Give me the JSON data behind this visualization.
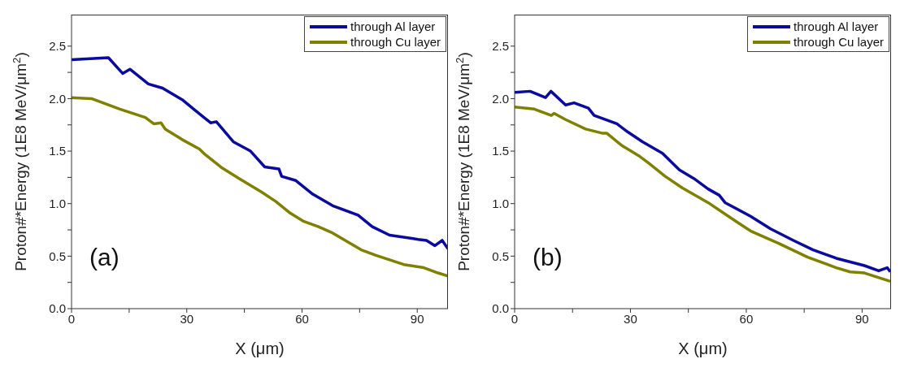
{
  "chart_data": [
    {
      "type": "line",
      "xlabel": "X (μm)",
      "ylabel": "Proton#*Energy (1E8 MeV/μm$^{2}$)",
      "annotations": [
        "(a)"
      ],
      "xlim": [
        0,
        98
      ],
      "ylim": [
        0,
        2.8
      ],
      "xticks": [
        0,
        {
          "value": 15,
          "label": null
        },
        30,
        {
          "value": 45,
          "label": null
        },
        60,
        {
          "value": 75,
          "label": null
        },
        90
      ],
      "yticks": [
        {
          "value": 0,
          "label": "0.0"
        },
        {
          "value": 0.25,
          "label": null
        },
        0.5,
        {
          "value": 0.75,
          "label": null
        },
        {
          "value": 1,
          "label": "1.0"
        },
        {
          "value": 1.25,
          "label": null
        },
        1.5,
        {
          "value": 1.75,
          "label": null
        },
        {
          "value": 2,
          "label": "2.0"
        },
        {
          "value": 2.25,
          "label": null
        },
        2.5
      ],
      "legend": "top right",
      "marker": "none",
      "line_style": "solid",
      "series": [
        {
          "name": "through Al layer",
          "color": "#0a0a9e",
          "x": [
            0,
            9.6,
            13.3,
            15.2,
            20,
            23.7,
            28.8,
            31.8,
            36.2,
            37.7,
            42.1,
            46.6,
            50.3,
            54,
            54.7,
            58.4,
            62.8,
            68,
            74.6,
            78.3,
            82.8,
            90.2,
            92.4,
            94.6,
            96.5,
            98
          ],
          "values": [
            2.37,
            2.39,
            2.24,
            2.28,
            2.14,
            2.1,
            1.99,
            1.9,
            1.77,
            1.78,
            1.59,
            1.5,
            1.35,
            1.33,
            1.26,
            1.22,
            1.09,
            0.98,
            0.89,
            0.78,
            0.7,
            0.66,
            0.65,
            0.6,
            0.65,
            0.57
          ]
        },
        {
          "name": "through Cu layer",
          "color": "#808000",
          "x": [
            0,
            5.2,
            9.6,
            12.6,
            19.2,
            21.4,
            23.3,
            24.4,
            28.8,
            33.3,
            34.7,
            39.2,
            43.6,
            49.5,
            53.2,
            56.9,
            60.5,
            64.3,
            68,
            75.4,
            79.1,
            86.5,
            91.7,
            95.4,
            98
          ],
          "values": [
            2.01,
            2,
            1.94,
            1.9,
            1.82,
            1.76,
            1.77,
            1.71,
            1.61,
            1.52,
            1.47,
            1.34,
            1.24,
            1.11,
            1.02,
            0.91,
            0.83,
            0.78,
            0.72,
            0.56,
            0.51,
            0.42,
            0.39,
            0.34,
            0.31
          ]
        }
      ]
    },
    {
      "type": "line",
      "xlabel": "X (μm)",
      "ylabel": "Proton#*Energy (1E8 MeV/μm$^{2}$)",
      "annotations": [
        "(b)"
      ],
      "xlim": [
        0,
        97.5
      ],
      "ylim": [
        0,
        2.8
      ],
      "xticks": [
        0,
        {
          "value": 15,
          "label": null
        },
        30,
        {
          "value": 45,
          "label": null
        },
        60,
        {
          "value": 75,
          "label": null
        },
        90
      ],
      "yticks": [
        {
          "value": 0,
          "label": "0.0"
        },
        {
          "value": 0.25,
          "label": null
        },
        0.5,
        {
          "value": 0.75,
          "label": null
        },
        {
          "value": 1,
          "label": "1.0"
        },
        {
          "value": 1.25,
          "label": null
        },
        1.5,
        {
          "value": 1.75,
          "label": null
        },
        {
          "value": 2,
          "label": "2.0"
        },
        {
          "value": 2.25,
          "label": null
        },
        2.5
      ],
      "legend": "top right",
      "marker": "none",
      "line_style": "solid",
      "series": [
        {
          "name": "through Al layer",
          "color": "#0a0a9e",
          "x": [
            0,
            4,
            8,
            9.4,
            13.2,
            15.4,
            19.1,
            20.6,
            26.5,
            29.4,
            33.1,
            38.3,
            42.7,
            46.4,
            50.1,
            53,
            54.5,
            61.1,
            66.3,
            72.2,
            77.3,
            83.3,
            90.6,
            94.3,
            96.5,
            97.3
          ],
          "values": [
            2.06,
            2.07,
            2.01,
            2.07,
            1.94,
            1.96,
            1.91,
            1.84,
            1.76,
            1.68,
            1.59,
            1.48,
            1.32,
            1.24,
            1.14,
            1.08,
            1.01,
            0.88,
            0.76,
            0.65,
            0.56,
            0.48,
            0.41,
            0.36,
            0.39,
            0.35
          ]
        },
        {
          "name": "through Cu layer",
          "color": "#808000",
          "x": [
            0,
            5.1,
            9.5,
            10.2,
            13.2,
            18.4,
            22.8,
            23.9,
            27.9,
            32.4,
            34.6,
            39,
            43.4,
            50.1,
            57.4,
            61.1,
            68.5,
            75.9,
            83.3,
            86.9,
            90.6,
            97.3
          ],
          "values": [
            1.92,
            1.9,
            1.84,
            1.86,
            1.8,
            1.71,
            1.67,
            1.67,
            1.55,
            1.45,
            1.39,
            1.26,
            1.15,
            1.01,
            0.83,
            0.74,
            0.62,
            0.49,
            0.39,
            0.35,
            0.34,
            0.26
          ]
        }
      ]
    }
  ]
}
